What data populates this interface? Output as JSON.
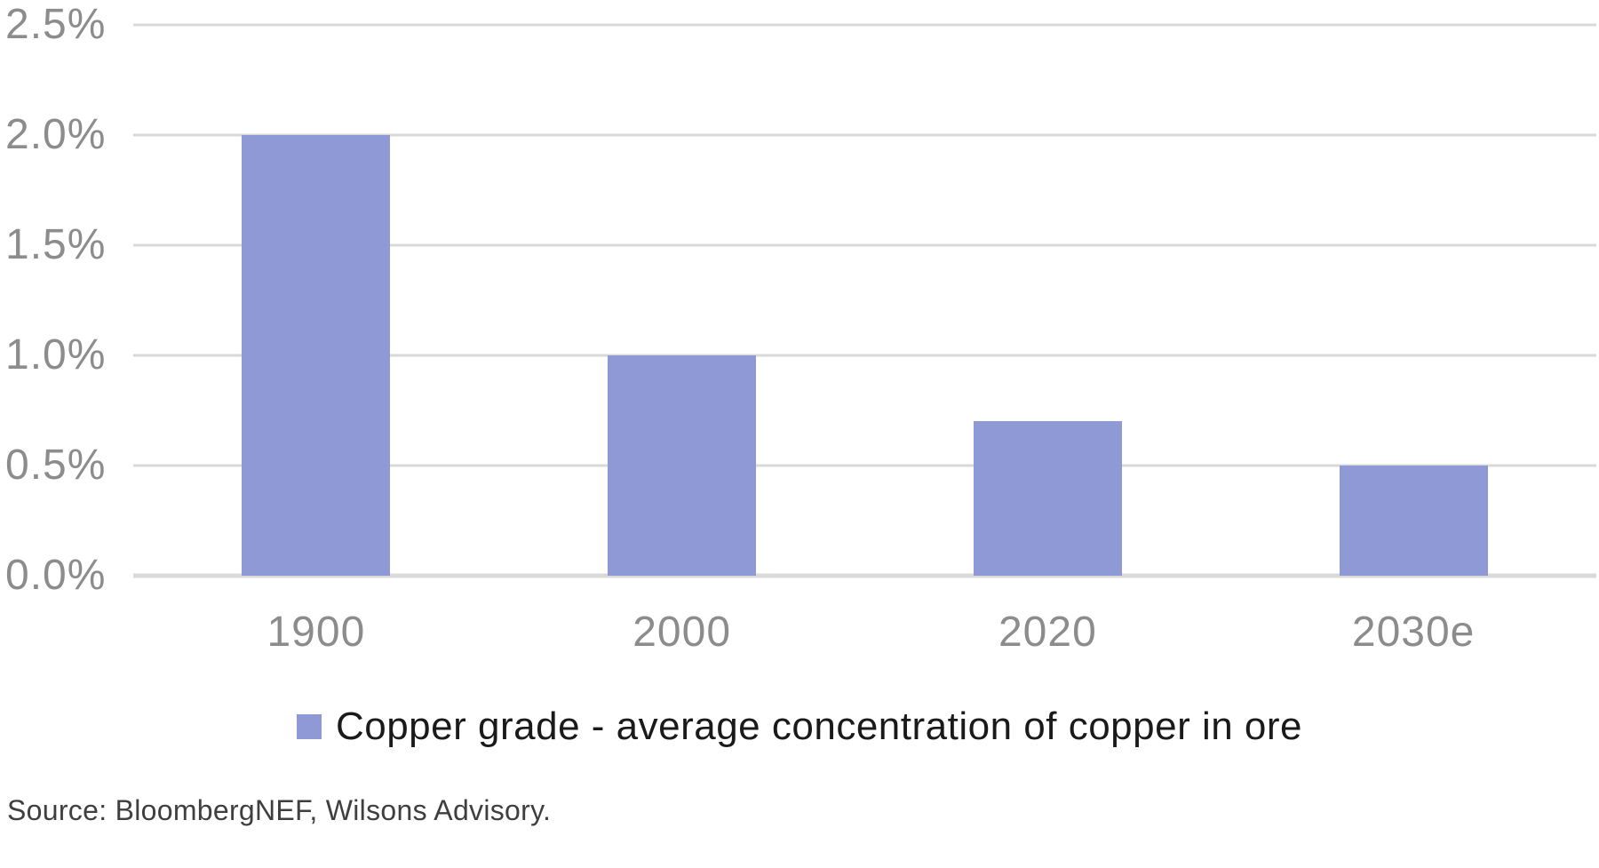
{
  "chart_data": {
    "type": "bar",
    "categories": [
      "1900",
      "2000",
      "2020",
      "2030e"
    ],
    "values": [
      2.0,
      1.0,
      0.7,
      0.5
    ],
    "series_name": "Copper grade - average concentration of copper in ore",
    "title": "",
    "xlabel": "",
    "ylabel": "",
    "ylim": [
      0,
      2.5
    ],
    "yticks": [
      0.0,
      0.5,
      1.0,
      1.5,
      2.0,
      2.5
    ],
    "ytick_labels": [
      "0.0%",
      "0.5%",
      "1.0%",
      "1.5%",
      "2.0%",
      "2.5%"
    ],
    "grid": true,
    "legend_position": "bottom"
  },
  "legend": {
    "label": "Copper grade - average concentration of copper in ore"
  },
  "source": {
    "text": "Source: BloombergNEF, Wilsons Advisory."
  },
  "colors": {
    "bar": "#8E99D5",
    "gridline": "#D9D9D9",
    "axis_text": "#8C8C8C",
    "legend_text": "#1A1A1A",
    "source_text": "#3F3F3F",
    "background": "#FFFFFF"
  }
}
